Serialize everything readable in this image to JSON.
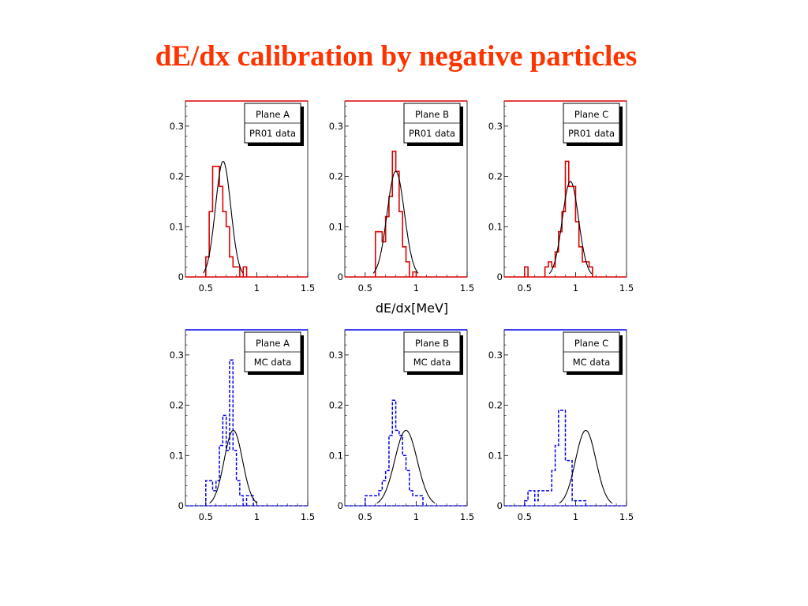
{
  "title": "dE/dx calibration by negative particles",
  "xlabel": "dE/dx[MeV]",
  "colors": {
    "title": "#ff3300",
    "data_line": "#dd0000",
    "mc_line": "#0000ee",
    "fit_line": "#000000"
  },
  "chart_data": [
    {
      "type": "bar",
      "plane": "Plane A",
      "dataset": "PR01 data",
      "xlim": [
        0.3,
        1.5
      ],
      "ylim": [
        0,
        0.35
      ],
      "xticks": [
        "0.5",
        "1",
        "1.5"
      ],
      "yticks": [
        "0",
        "0.1",
        "0.2",
        "0.3"
      ],
      "bin_width": 0.0333,
      "bins": [
        [
          0.5,
          0.04
        ],
        [
          0.533,
          0.13
        ],
        [
          0.567,
          0.22
        ],
        [
          0.6,
          0.22
        ],
        [
          0.633,
          0.18
        ],
        [
          0.667,
          0.13
        ],
        [
          0.7,
          0.1
        ],
        [
          0.733,
          0.04
        ],
        [
          0.767,
          0.02
        ],
        [
          0.8,
          0.02
        ],
        [
          0.867,
          0.02
        ]
      ],
      "fit": {
        "mean": 0.67,
        "sigma": 0.075,
        "amplitude": 0.23
      }
    },
    {
      "type": "bar",
      "plane": "Plane B",
      "dataset": "PR01 data",
      "xlim": [
        0.3,
        1.5
      ],
      "ylim": [
        0,
        0.35
      ],
      "xticks": [
        "0.5",
        "1",
        "1.5"
      ],
      "yticks": [
        "0",
        "0.1",
        "0.2",
        "0.3"
      ],
      "bin_width": 0.0333,
      "bins": [
        [
          0.6,
          0.09
        ],
        [
          0.633,
          0.09
        ],
        [
          0.667,
          0.07
        ],
        [
          0.7,
          0.12
        ],
        [
          0.733,
          0.16
        ],
        [
          0.767,
          0.25
        ],
        [
          0.8,
          0.21
        ],
        [
          0.833,
          0.13
        ],
        [
          0.867,
          0.06
        ],
        [
          0.9,
          0.03
        ],
        [
          0.967,
          0.01
        ]
      ],
      "fit": {
        "mean": 0.8,
        "sigma": 0.085,
        "amplitude": 0.21
      }
    },
    {
      "type": "bar",
      "plane": "Plane C",
      "dataset": "PR01 data",
      "xlim": [
        0.3,
        1.5
      ],
      "ylim": [
        0,
        0.35
      ],
      "xticks": [
        "0.5",
        "1",
        "1.5"
      ],
      "yticks": [
        "0",
        "0.1",
        "0.2",
        "0.3"
      ],
      "bin_width": 0.0333,
      "bins": [
        [
          0.5,
          0.02
        ],
        [
          0.7,
          0.02
        ],
        [
          0.733,
          0.03
        ],
        [
          0.767,
          0.02
        ],
        [
          0.8,
          0.05
        ],
        [
          0.833,
          0.09
        ],
        [
          0.867,
          0.13
        ],
        [
          0.9,
          0.23
        ],
        [
          0.933,
          0.18
        ],
        [
          0.967,
          0.18
        ],
        [
          1.0,
          0.11
        ],
        [
          1.033,
          0.06
        ],
        [
          1.067,
          0.03
        ],
        [
          1.1,
          0.03
        ],
        [
          1.133,
          0.02
        ]
      ],
      "fit": {
        "mean": 0.95,
        "sigma": 0.08,
        "amplitude": 0.19
      }
    },
    {
      "type": "bar",
      "plane": "Plane A",
      "dataset": "MC data",
      "xlim": [
        0.3,
        1.5
      ],
      "ylim": [
        0,
        0.35
      ],
      "xticks": [
        "0.5",
        "1",
        "1.5"
      ],
      "yticks": [
        "0",
        "0.1",
        "0.2",
        "0.3"
      ],
      "bin_width": 0.0333,
      "bins": [
        [
          0.5,
          0.05
        ],
        [
          0.533,
          0.05
        ],
        [
          0.567,
          0.03
        ],
        [
          0.6,
          0.05
        ],
        [
          0.633,
          0.12
        ],
        [
          0.667,
          0.18
        ],
        [
          0.7,
          0.11
        ],
        [
          0.733,
          0.29
        ],
        [
          0.767,
          0.11
        ],
        [
          0.8,
          0.05
        ],
        [
          0.833,
          0.02
        ],
        [
          0.9,
          0.02
        ],
        [
          0.933,
          0.02
        ]
      ],
      "fit": {
        "mean": 0.77,
        "sigma": 0.09,
        "amplitude": 0.15
      }
    },
    {
      "type": "bar",
      "plane": "Plane B",
      "dataset": "MC data",
      "xlim": [
        0.3,
        1.5
      ],
      "ylim": [
        0,
        0.35
      ],
      "xticks": [
        "0.5",
        "1",
        "1.5"
      ],
      "yticks": [
        "0",
        "0.1",
        "0.2",
        "0.3"
      ],
      "bin_width": 0.0333,
      "bins": [
        [
          0.5,
          0.02
        ],
        [
          0.533,
          0.02
        ],
        [
          0.567,
          0.02
        ],
        [
          0.6,
          0.02
        ],
        [
          0.633,
          0.03
        ],
        [
          0.667,
          0.05
        ],
        [
          0.7,
          0.07
        ],
        [
          0.733,
          0.14
        ],
        [
          0.767,
          0.21
        ],
        [
          0.8,
          0.15
        ],
        [
          0.833,
          0.14
        ],
        [
          0.867,
          0.1
        ],
        [
          0.9,
          0.07
        ],
        [
          0.933,
          0.03
        ],
        [
          0.967,
          0.02
        ],
        [
          1.0,
          0.02
        ],
        [
          1.033,
          0.02
        ]
      ],
      "fit": {
        "mean": 0.9,
        "sigma": 0.11,
        "amplitude": 0.15
      }
    },
    {
      "type": "bar",
      "plane": "Plane C",
      "dataset": "MC data",
      "xlim": [
        0.3,
        1.5
      ],
      "ylim": [
        0,
        0.35
      ],
      "xticks": [
        "0.5",
        "1",
        "1.5"
      ],
      "yticks": [
        "0",
        "0.1",
        "0.2",
        "0.3"
      ],
      "bin_width": 0.0333,
      "bins": [
        [
          0.5,
          0.01
        ],
        [
          0.533,
          0.03
        ],
        [
          0.567,
          0.03
        ],
        [
          0.6,
          0.01
        ],
        [
          0.633,
          0.03
        ],
        [
          0.667,
          0.03
        ],
        [
          0.7,
          0.03
        ],
        [
          0.733,
          0.03
        ],
        [
          0.767,
          0.07
        ],
        [
          0.8,
          0.12
        ],
        [
          0.833,
          0.19
        ],
        [
          0.867,
          0.19
        ],
        [
          0.9,
          0.09
        ],
        [
          0.933,
          0.09
        ],
        [
          0.967,
          0.01
        ],
        [
          1.0,
          0.01
        ],
        [
          1.033,
          0.01
        ],
        [
          1.067,
          0.01
        ]
      ],
      "fit": {
        "mean": 1.1,
        "sigma": 0.1,
        "amplitude": 0.15
      }
    }
  ]
}
